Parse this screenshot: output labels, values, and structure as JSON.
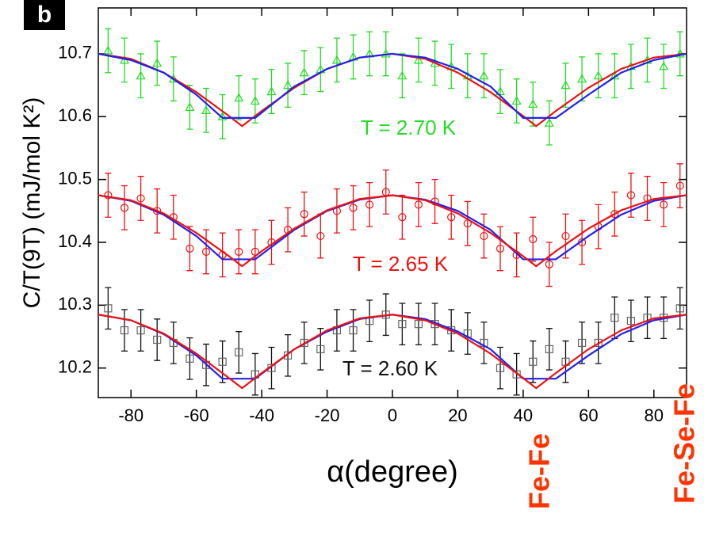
{
  "chart_data": {
    "type": "errorbar-scatter",
    "panel_label": "b",
    "ylabel": "C/T(9T) (mJ/mol K²)",
    "xlabel": "α(degree)",
    "xlim": [
      -90,
      90
    ],
    "ylim": [
      10.153,
      10.773
    ],
    "xticks": [
      -80,
      -60,
      -40,
      -20,
      0,
      20,
      40,
      60,
      80
    ],
    "yticks": [
      10.2,
      10.3,
      10.4,
      10.5,
      10.6,
      10.7
    ],
    "x": [
      -87,
      -82,
      -77,
      -72,
      -67,
      -62,
      -57,
      -52,
      -47,
      -42,
      -37,
      -32,
      -27,
      -22,
      -17,
      -12,
      -7,
      -2,
      3,
      8,
      13,
      18,
      23,
      28,
      33,
      38,
      43,
      48,
      53,
      58,
      63,
      68,
      73,
      78,
      83,
      88
    ],
    "datasets": [
      {
        "label": "T = 2.70 K",
        "color": "#22dd22",
        "marker": "triangle",
        "error": 0.035,
        "values": [
          10.705,
          10.69,
          10.665,
          10.685,
          10.66,
          10.615,
          10.61,
          10.6,
          10.63,
          10.625,
          10.64,
          10.65,
          10.67,
          10.675,
          10.69,
          10.695,
          10.7,
          10.7,
          10.665,
          10.69,
          10.685,
          10.68,
          10.665,
          10.665,
          10.64,
          10.625,
          10.62,
          10.59,
          10.65,
          10.66,
          10.665,
          10.665,
          10.68,
          10.69,
          10.68,
          10.7
        ]
      },
      {
        "label": "T = 2.65 K",
        "color": "#ee1111",
        "marker": "circle",
        "error": 0.035,
        "values": [
          10.475,
          10.455,
          10.47,
          10.45,
          10.44,
          10.39,
          10.385,
          10.38,
          10.385,
          10.385,
          10.4,
          10.42,
          10.445,
          10.41,
          10.45,
          10.455,
          10.46,
          10.48,
          10.44,
          10.46,
          10.465,
          10.44,
          10.43,
          10.41,
          10.39,
          10.38,
          10.405,
          10.365,
          10.41,
          10.4,
          10.425,
          10.445,
          10.475,
          10.47,
          10.46,
          10.49
        ]
      },
      {
        "label": "T = 2.60 K",
        "color": "#111111",
        "marker": "square",
        "error": 0.033,
        "values": [
          10.295,
          10.26,
          10.26,
          10.245,
          10.24,
          10.215,
          10.205,
          10.21,
          10.225,
          10.19,
          10.2,
          10.22,
          10.24,
          10.23,
          10.26,
          10.26,
          10.275,
          10.285,
          10.27,
          10.27,
          10.27,
          10.26,
          10.255,
          10.24,
          10.2,
          10.19,
          10.21,
          10.23,
          10.21,
          10.24,
          10.24,
          10.28,
          10.275,
          10.28,
          10.28,
          10.295
        ]
      }
    ],
    "fits": [
      {
        "color": "#ee1111",
        "x": [
          -90,
          -80,
          -70,
          -60,
          -50,
          -46,
          -40,
          -30,
          -20,
          -10,
          0,
          10,
          20,
          30,
          40,
          44,
          50,
          60,
          70,
          80,
          90
        ],
        "values": [
          10.7,
          10.692,
          10.67,
          10.639,
          10.601,
          10.585,
          10.609,
          10.646,
          10.676,
          10.694,
          10.7,
          10.692,
          10.67,
          10.639,
          10.601,
          10.585,
          10.609,
          10.646,
          10.676,
          10.694,
          10.7
        ]
      },
      {
        "color": "#2222ee",
        "x": [
          -90,
          -80,
          -70,
          -60,
          -52,
          -42,
          -30,
          -20,
          -10,
          0,
          10,
          20,
          30,
          40,
          50,
          60,
          70,
          80,
          90
        ],
        "values": [
          10.7,
          10.69,
          10.67,
          10.635,
          10.598,
          10.598,
          10.648,
          10.676,
          10.694,
          10.7,
          10.694,
          10.676,
          10.648,
          10.598,
          10.598,
          10.635,
          10.67,
          10.69,
          10.7
        ]
      },
      {
        "color": "#2222ee",
        "x": [
          -90,
          -80,
          -70,
          -60,
          -52,
          -42,
          -30,
          -20,
          -10,
          0,
          10,
          20,
          30,
          40,
          50,
          60,
          70,
          80,
          90
        ],
        "values": [
          10.475,
          10.466,
          10.444,
          10.41,
          10.373,
          10.373,
          10.42,
          10.45,
          10.468,
          10.475,
          10.468,
          10.45,
          10.42,
          10.373,
          10.373,
          10.41,
          10.444,
          10.466,
          10.475
        ]
      },
      {
        "color": "#ee1111",
        "x": [
          -90,
          -80,
          -70,
          -60,
          -50,
          -46,
          -40,
          -30,
          -20,
          -10,
          0,
          10,
          20,
          30,
          40,
          44,
          50,
          60,
          70,
          80,
          90
        ],
        "values": [
          10.475,
          10.467,
          10.446,
          10.415,
          10.378,
          10.362,
          10.386,
          10.422,
          10.451,
          10.469,
          10.475,
          10.467,
          10.446,
          10.415,
          10.378,
          10.362,
          10.386,
          10.422,
          10.451,
          10.469,
          10.475
        ]
      },
      {
        "color": "#2222ee",
        "x": [
          -90,
          -80,
          -70,
          -60,
          -52,
          -42,
          -30,
          -20,
          -10,
          0,
          10,
          20,
          30,
          40,
          50,
          60,
          70,
          80,
          90
        ],
        "values": [
          10.285,
          10.276,
          10.254,
          10.22,
          10.183,
          10.183,
          10.23,
          10.258,
          10.278,
          10.285,
          10.278,
          10.258,
          10.23,
          10.183,
          10.183,
          10.22,
          10.254,
          10.276,
          10.285
        ]
      },
      {
        "color": "#ee1111",
        "x": [
          -90,
          -80,
          -70,
          -60,
          -50,
          -46,
          -40,
          -30,
          -20,
          -10,
          0,
          10,
          20,
          30,
          40,
          44,
          50,
          60,
          70,
          80,
          90
        ],
        "values": [
          10.285,
          10.276,
          10.255,
          10.223,
          10.184,
          10.168,
          10.192,
          10.23,
          10.26,
          10.279,
          10.285,
          10.276,
          10.255,
          10.223,
          10.184,
          10.168,
          10.192,
          10.23,
          10.26,
          10.279,
          10.285
        ]
      }
    ],
    "annotations": [
      {
        "text": "Fe-Fe",
        "color": "#ff3300"
      },
      {
        "text": "Fe-Se-Fe",
        "color": "#ff3300"
      }
    ]
  }
}
